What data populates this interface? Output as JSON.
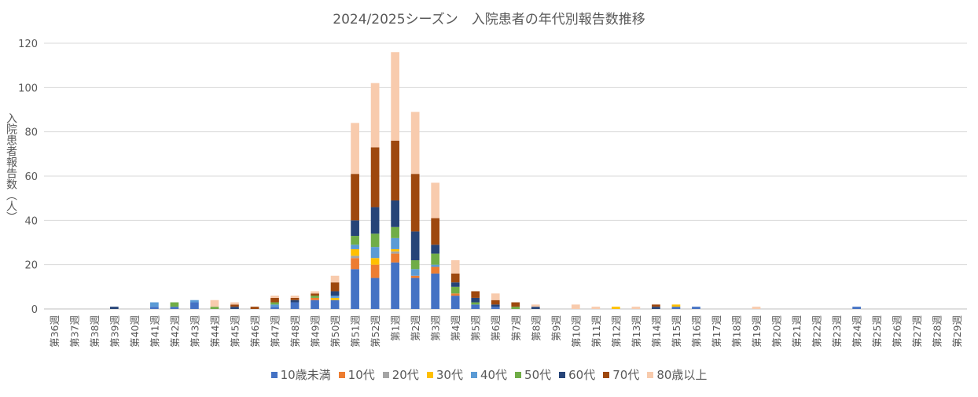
{
  "chart_data": {
    "type": "bar",
    "stacked": true,
    "title": "2024/2025シーズン　入院患者の年代別報告数推移",
    "ylabel": "入院患者報告数（人）",
    "xlabel": "",
    "ylim": [
      0,
      120
    ],
    "yticks": [
      0,
      20,
      40,
      60,
      80,
      100,
      120
    ],
    "grid": true,
    "legend_position": "bottom",
    "categories": [
      "第36週",
      "第37週",
      "第38週",
      "第39週",
      "第40週",
      "第41週",
      "第42週",
      "第43週",
      "第44週",
      "第45週",
      "第46週",
      "第47週",
      "第48週",
      "第49週",
      "第50週",
      "第51週",
      "第52週",
      "第1週",
      "第2週",
      "第3週",
      "第4週",
      "第5週",
      "第6週",
      "第7週",
      "第8週",
      "第9週",
      "第10週",
      "第11週",
      "第12週",
      "第13週",
      "第14週",
      "第15週",
      "第16週",
      "第17週",
      "第18週",
      "第19週",
      "第20週",
      "第21週",
      "第22週",
      "第23週",
      "第24週",
      "第25週",
      "第26週",
      "第27週",
      "第28週",
      "第29週"
    ],
    "series": [
      {
        "name": "10歳未満",
        "color": "#4472C4",
        "values": [
          0,
          0,
          0,
          0,
          0,
          1,
          1,
          3,
          0,
          0,
          0,
          1,
          3,
          4,
          4,
          18,
          14,
          21,
          14,
          16,
          6,
          2,
          1,
          0,
          0,
          0,
          0,
          0,
          0,
          0,
          0,
          1,
          1,
          0,
          0,
          0,
          0,
          0,
          0,
          0,
          1,
          0,
          0,
          0,
          0,
          0
        ]
      },
      {
        "name": "10代",
        "color": "#ED7D31",
        "values": [
          0,
          0,
          0,
          0,
          0,
          0,
          0,
          0,
          0,
          0,
          0,
          0,
          0,
          1,
          0,
          5,
          6,
          4,
          1,
          3,
          1,
          0,
          0,
          0,
          0,
          0,
          0,
          0,
          0,
          0,
          0,
          0,
          0,
          0,
          0,
          0,
          0,
          0,
          0,
          0,
          0,
          0,
          0,
          0,
          0,
          0
        ]
      },
      {
        "name": "20代",
        "color": "#A5A5A5",
        "values": [
          0,
          0,
          0,
          0,
          0,
          0,
          0,
          0,
          0,
          0,
          0,
          0,
          0,
          0,
          0,
          1,
          0,
          1,
          0,
          0,
          0,
          0,
          0,
          0,
          0,
          0,
          0,
          0,
          0,
          0,
          0,
          0,
          0,
          0,
          0,
          0,
          0,
          0,
          0,
          0,
          0,
          0,
          0,
          0,
          0,
          0
        ]
      },
      {
        "name": "30代",
        "color": "#FFC000",
        "values": [
          0,
          0,
          0,
          0,
          0,
          0,
          0,
          0,
          0,
          0,
          0,
          0,
          0,
          0,
          1,
          3,
          3,
          1,
          0,
          0,
          0,
          0,
          0,
          0,
          0,
          0,
          0,
          0,
          1,
          0,
          0,
          1,
          0,
          0,
          0,
          0,
          0,
          0,
          0,
          0,
          0,
          0,
          0,
          0,
          0,
          0
        ]
      },
      {
        "name": "40代",
        "color": "#5B9BD5",
        "values": [
          0,
          0,
          0,
          0,
          0,
          2,
          0,
          1,
          0,
          0,
          0,
          1,
          0,
          0,
          1,
          2,
          5,
          5,
          3,
          1,
          0,
          0,
          0,
          0,
          0,
          0,
          0,
          0,
          0,
          0,
          0,
          0,
          0,
          0,
          0,
          0,
          0,
          0,
          0,
          0,
          0,
          0,
          0,
          0,
          0,
          0
        ]
      },
      {
        "name": "50代",
        "color": "#70AD47",
        "values": [
          0,
          0,
          0,
          0,
          0,
          0,
          2,
          0,
          1,
          0,
          0,
          1,
          0,
          1,
          0,
          4,
          6,
          5,
          4,
          5,
          3,
          1,
          0,
          1,
          0,
          0,
          0,
          0,
          0,
          0,
          0,
          0,
          0,
          0,
          0,
          0,
          0,
          0,
          0,
          0,
          0,
          0,
          0,
          0,
          0,
          0
        ]
      },
      {
        "name": "60代",
        "color": "#264478",
        "values": [
          0,
          0,
          0,
          1,
          0,
          0,
          0,
          0,
          0,
          1,
          0,
          0,
          1,
          0,
          2,
          7,
          12,
          12,
          13,
          4,
          2,
          2,
          1,
          0,
          1,
          0,
          0,
          0,
          0,
          0,
          1,
          0,
          0,
          0,
          0,
          0,
          0,
          0,
          0,
          0,
          0,
          0,
          0,
          0,
          0,
          0
        ]
      },
      {
        "name": "70代",
        "color": "#9E480E",
        "values": [
          0,
          0,
          0,
          0,
          0,
          0,
          0,
          0,
          0,
          1,
          1,
          2,
          1,
          1,
          4,
          21,
          27,
          27,
          26,
          12,
          4,
          3,
          2,
          2,
          0,
          0,
          0,
          0,
          0,
          0,
          1,
          0,
          0,
          0,
          0,
          0,
          0,
          0,
          0,
          0,
          0,
          0,
          0,
          0,
          0,
          0
        ]
      },
      {
        "name": "80歳以上",
        "color": "#F8CBAD",
        "values": [
          0,
          0,
          0,
          0,
          0,
          0,
          0,
          0,
          3,
          1,
          0,
          1,
          1,
          1,
          3,
          23,
          29,
          40,
          28,
          16,
          6,
          0,
          3,
          0,
          1,
          0,
          2,
          1,
          0,
          1,
          0,
          0,
          0,
          0,
          0,
          1,
          0,
          0,
          0,
          0,
          0,
          0,
          0,
          0,
          0,
          0
        ]
      }
    ]
  }
}
